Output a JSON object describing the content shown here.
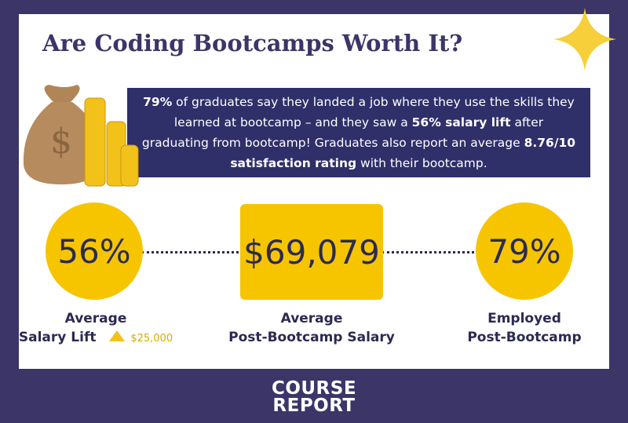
{
  "header": {
    "title": "Are Coding Bootcamps Worth It?"
  },
  "intro": {
    "segments": [
      {
        "text": "79%",
        "bold": true
      },
      {
        "text": " of graduates say they landed a job where they use the skills they learned at bootcamp – and they saw a ",
        "bold": false
      },
      {
        "text": "56% salary lift",
        "bold": true
      },
      {
        "text": " after graduating from bootcamp! Graduates also report an average ",
        "bold": false
      },
      {
        "text": "8.76/10 satisfaction rating",
        "bold": true
      },
      {
        "text": " with their bootcamp.",
        "bold": false
      }
    ]
  },
  "stats": [
    {
      "value": "56%",
      "label": [
        "Average",
        "Salary Lift"
      ],
      "note": "$25,000"
    },
    {
      "value": "$69,079",
      "label": [
        "Average",
        "Post-Bootcamp Salary"
      ]
    },
    {
      "value": "79%",
      "label": [
        "Employed",
        "Post-Bootcamp"
      ]
    }
  ],
  "footer": {
    "logo": [
      "COURSE",
      "REPORT"
    ]
  }
}
